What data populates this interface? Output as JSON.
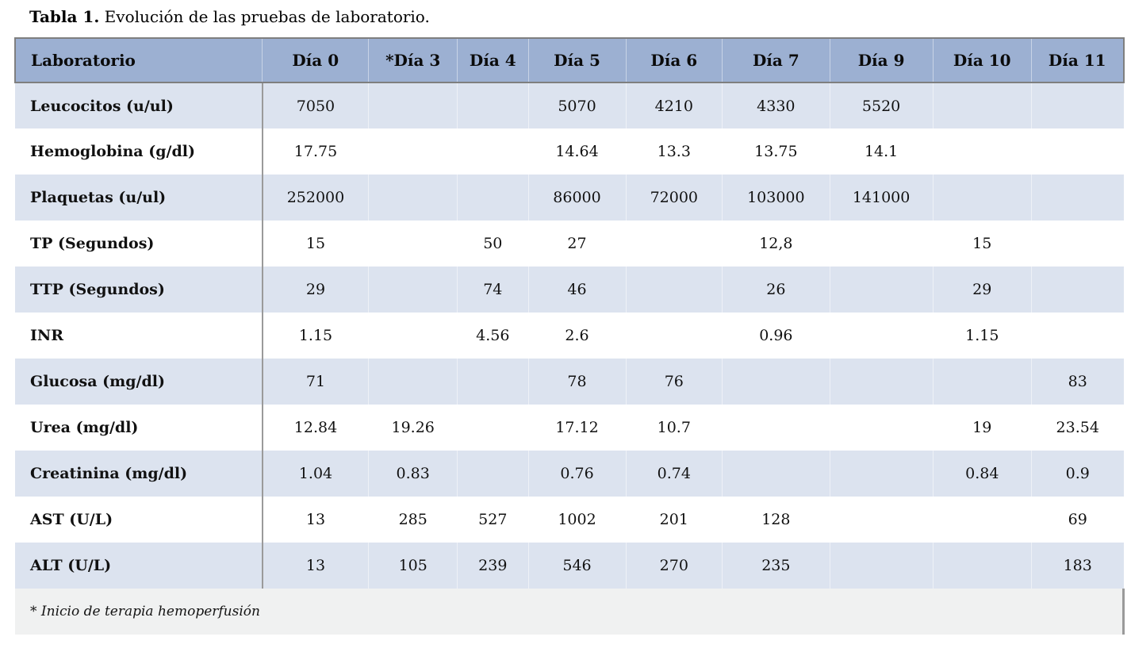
{
  "title": {
    "label": "Tabla 1.",
    "text": "Evolución de las pruebas de laboratorio."
  },
  "table": {
    "columns": [
      "Laboratorio",
      "Día 0",
      "*Día 3",
      "Día 4",
      "Día 5",
      "Día 6",
      "Día 7",
      "Día 9",
      "Día 10",
      "Día 11"
    ],
    "rows": [
      {
        "label": "Leucocitos (u/ul)",
        "values": [
          "7050",
          "",
          "",
          "5070",
          "4210",
          "4330",
          "5520",
          "",
          ""
        ]
      },
      {
        "label": "Hemoglobina (g/dl)",
        "values": [
          "17.75",
          "",
          "",
          "14.64",
          "13.3",
          "13.75",
          "14.1",
          "",
          ""
        ]
      },
      {
        "label": "Plaquetas (u/ul)",
        "values": [
          "252000",
          "",
          "",
          "86000",
          "72000",
          "103000",
          "141000",
          "",
          ""
        ]
      },
      {
        "label": "TP (Segundos)",
        "values": [
          "15",
          "",
          "50",
          "27",
          "",
          "12,8",
          "",
          "15",
          ""
        ]
      },
      {
        "label": "TTP (Segundos)",
        "values": [
          "29",
          "",
          "74",
          "46",
          "",
          "26",
          "",
          "29",
          ""
        ]
      },
      {
        "label": "INR",
        "values": [
          "1.15",
          "",
          "4.56",
          "2.6",
          "",
          "0.96",
          "",
          "1.15",
          ""
        ]
      },
      {
        "label": "Glucosa (mg/dl)",
        "values": [
          "71",
          "",
          "",
          "78",
          "76",
          "",
          "",
          "",
          "83"
        ]
      },
      {
        "label": "Urea (mg/dl)",
        "values": [
          "12.84",
          "19.26",
          "",
          "17.12",
          "10.7",
          "",
          "",
          "19",
          "23.54"
        ]
      },
      {
        "label": "Creatinina (mg/dl)",
        "values": [
          "1.04",
          "0.83",
          "",
          "0.76",
          "0.74",
          "",
          "",
          "0.84",
          "0.9"
        ]
      },
      {
        "label": "AST (U/L)",
        "values": [
          "13",
          "285",
          "527",
          "1002",
          "201",
          "128",
          "",
          "",
          "69"
        ]
      },
      {
        "label": "ALT (U/L)",
        "values": [
          "13",
          "105",
          "239",
          "546",
          "270",
          "235",
          "",
          "",
          "183"
        ]
      }
    ],
    "footnote": "* Inicio de terapia hemoperfusión"
  },
  "colors": {
    "header_bg": "#9cb0d2",
    "row_alt_bg": "#dce3ef",
    "row_bg": "#ffffff",
    "footnote_bg": "#f0f1f1",
    "border_dark": "#7f7f7f",
    "divider": "#9a9a9a",
    "text": "#111111"
  }
}
